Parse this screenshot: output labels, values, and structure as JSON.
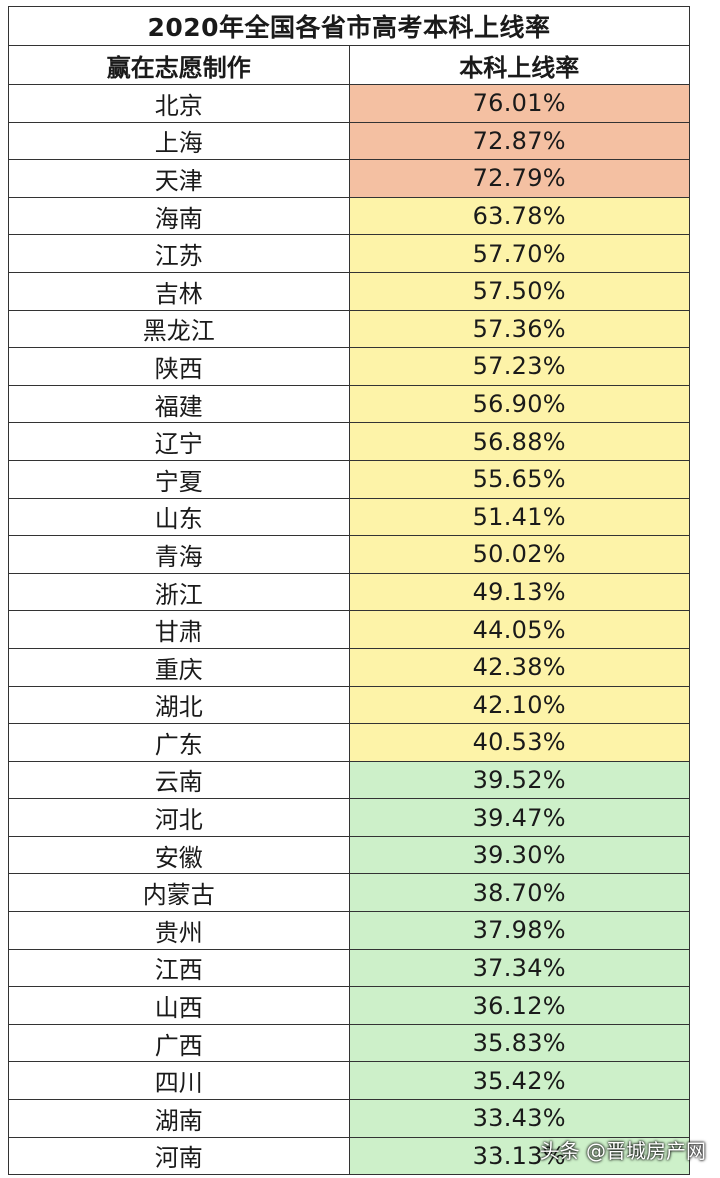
{
  "table": {
    "title": "2020年全国各省市高考本科上线率",
    "header_left": "赢在志愿制作",
    "header_right": "本科上线率",
    "colors": {
      "high": "#f4c0a2",
      "mid": "#fdf3a8",
      "low": "#cdf0c9"
    },
    "rows": [
      {
        "province": "北京",
        "rate": "76.01%",
        "tier": "high"
      },
      {
        "province": "上海",
        "rate": "72.87%",
        "tier": "high"
      },
      {
        "province": "天津",
        "rate": "72.79%",
        "tier": "high"
      },
      {
        "province": "海南",
        "rate": "63.78%",
        "tier": "mid"
      },
      {
        "province": "江苏",
        "rate": "57.70%",
        "tier": "mid"
      },
      {
        "province": "吉林",
        "rate": "57.50%",
        "tier": "mid"
      },
      {
        "province": "黑龙江",
        "rate": "57.36%",
        "tier": "mid"
      },
      {
        "province": "陕西",
        "rate": "57.23%",
        "tier": "mid"
      },
      {
        "province": "福建",
        "rate": "56.90%",
        "tier": "mid"
      },
      {
        "province": "辽宁",
        "rate": "56.88%",
        "tier": "mid"
      },
      {
        "province": "宁夏",
        "rate": "55.65%",
        "tier": "mid"
      },
      {
        "province": "山东",
        "rate": "51.41%",
        "tier": "mid"
      },
      {
        "province": "青海",
        "rate": "50.02%",
        "tier": "mid"
      },
      {
        "province": "浙江",
        "rate": "49.13%",
        "tier": "mid"
      },
      {
        "province": "甘肃",
        "rate": "44.05%",
        "tier": "mid"
      },
      {
        "province": "重庆",
        "rate": "42.38%",
        "tier": "mid"
      },
      {
        "province": "湖北",
        "rate": "42.10%",
        "tier": "mid"
      },
      {
        "province": "广东",
        "rate": "40.53%",
        "tier": "mid"
      },
      {
        "province": "云南",
        "rate": "39.52%",
        "tier": "low"
      },
      {
        "province": "河北",
        "rate": "39.47%",
        "tier": "low"
      },
      {
        "province": "安徽",
        "rate": "39.30%",
        "tier": "low"
      },
      {
        "province": "内蒙古",
        "rate": "38.70%",
        "tier": "low"
      },
      {
        "province": "贵州",
        "rate": "37.98%",
        "tier": "low"
      },
      {
        "province": "江西",
        "rate": "37.34%",
        "tier": "low"
      },
      {
        "province": "山西",
        "rate": "36.12%",
        "tier": "low"
      },
      {
        "province": "广西",
        "rate": "35.83%",
        "tier": "low"
      },
      {
        "province": "四川",
        "rate": "35.42%",
        "tier": "low"
      },
      {
        "province": "湖南",
        "rate": "33.43%",
        "tier": "low"
      },
      {
        "province": "河南",
        "rate": "33.13%",
        "tier": "low"
      }
    ]
  },
  "watermark": "头条 @晋城房产网"
}
